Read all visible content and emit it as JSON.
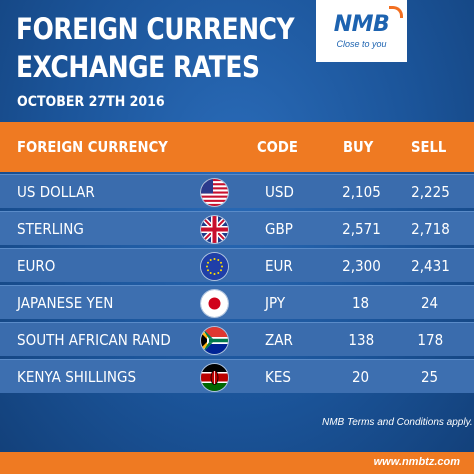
{
  "header": {
    "title_line1": "FOREIGN CURRENCY",
    "title_line2": "EXCHANGE RATES",
    "date": "OCTOBER 27TH 2016"
  },
  "logo": {
    "brand": "NMB",
    "tagline": "Close to you"
  },
  "table": {
    "columns": {
      "currency": "FOREIGN CURRENCY",
      "code": "CODE",
      "buy": "BUY",
      "sell": "SELL"
    },
    "rows": [
      {
        "currency": "US DOLLAR",
        "flag": "usa-flag-icon",
        "code": "USD",
        "buy": "2,105",
        "sell": "2,225"
      },
      {
        "currency": "STERLING",
        "flag": "uk-flag-icon",
        "code": "GBP",
        "buy": "2,571",
        "sell": "2,718"
      },
      {
        "currency": "EURO",
        "flag": "eu-flag-icon",
        "code": "EUR",
        "buy": "2,300",
        "sell": "2,431"
      },
      {
        "currency": "JAPANESE YEN",
        "flag": "japan-flag-icon",
        "code": "JPY",
        "buy": "18",
        "sell": "24"
      },
      {
        "currency": "SOUTH AFRICAN RAND",
        "flag": "south-africa-flag-icon",
        "code": "ZAR",
        "buy": "138",
        "sell": "178"
      },
      {
        "currency": "KENYA SHILLINGS",
        "flag": "kenya-flag-icon",
        "code": "KES",
        "buy": "20",
        "sell": "25"
      }
    ]
  },
  "footer": {
    "terms": "NMB Terms and Conditions apply.",
    "url": "www.nmbtz.com"
  },
  "colors": {
    "background": "#1b5499",
    "accent_orange": "#ef7a22",
    "row_blue": "#3d6fb0",
    "brand_blue": "#1d63b0"
  }
}
